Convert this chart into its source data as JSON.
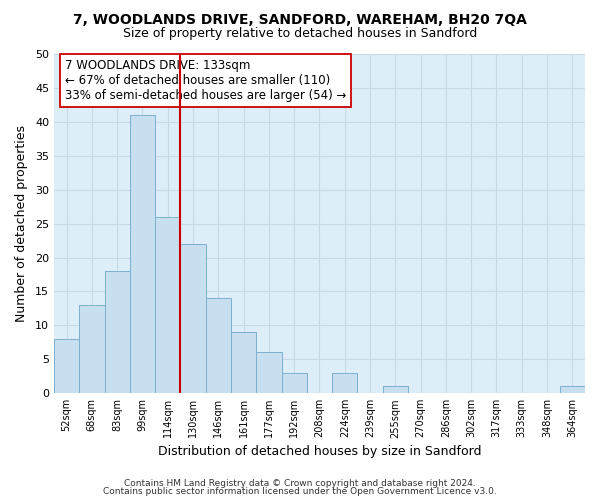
{
  "title": "7, WOODLANDS DRIVE, SANDFORD, WAREHAM, BH20 7QA",
  "subtitle": "Size of property relative to detached houses in Sandford",
  "xlabel": "Distribution of detached houses by size in Sandford",
  "ylabel": "Number of detached properties",
  "bar_color": "#c8dff0",
  "bar_edge_color": "#7ab0d0",
  "bin_labels": [
    "52sqm",
    "68sqm",
    "83sqm",
    "99sqm",
    "114sqm",
    "130sqm",
    "146sqm",
    "161sqm",
    "177sqm",
    "192sqm",
    "208sqm",
    "224sqm",
    "239sqm",
    "255sqm",
    "270sqm",
    "286sqm",
    "302sqm",
    "317sqm",
    "333sqm",
    "348sqm",
    "364sqm"
  ],
  "bar_heights": [
    8,
    13,
    18,
    41,
    26,
    22,
    14,
    9,
    6,
    3,
    0,
    3,
    0,
    1,
    0,
    0,
    0,
    0,
    0,
    0,
    1
  ],
  "ylim": [
    0,
    50
  ],
  "yticks": [
    0,
    5,
    10,
    15,
    20,
    25,
    30,
    35,
    40,
    45,
    50
  ],
  "vline_color": "#cc0000",
  "annotation_title": "7 WOODLANDS DRIVE: 133sqm",
  "annotation_line1": "← 67% of detached houses are smaller (110)",
  "annotation_line2": "33% of semi-detached houses are larger (54) →",
  "annotation_box_color": "#ffffff",
  "annotation_box_edge": "#cc0000",
  "footer_line1": "Contains HM Land Registry data © Crown copyright and database right 2024.",
  "footer_line2": "Contains public sector information licensed under the Open Government Licence v3.0.",
  "grid_color": "#c8dae8",
  "background_color": "#deeef8"
}
